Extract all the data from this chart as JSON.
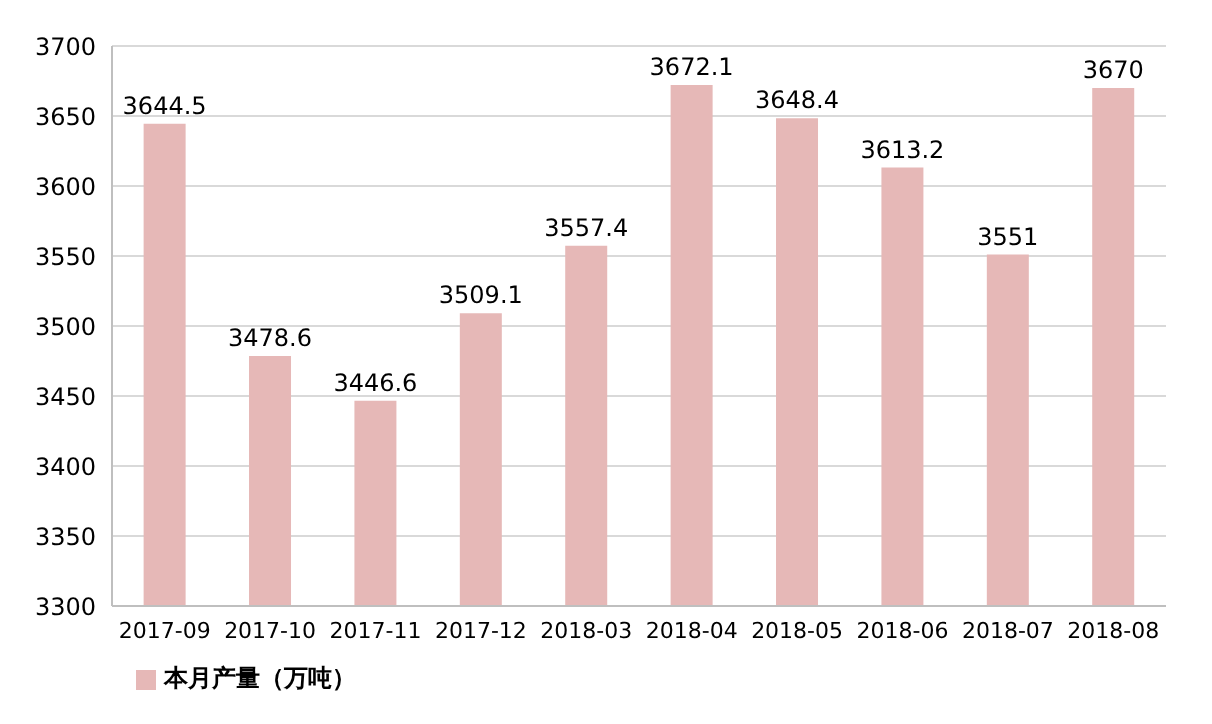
{
  "chart_data": {
    "type": "bar",
    "categories": [
      "2017-09",
      "2017-10",
      "2017-11",
      "2017-12",
      "2018-03",
      "2018-04",
      "2018-05",
      "2018-06",
      "2018-07",
      "2018-08"
    ],
    "series": [
      {
        "name": "本月产量（万吨）",
        "color": "#e6b8b7",
        "values": [
          3644.5,
          3478.6,
          3446.6,
          3509.1,
          3557.4,
          3672.1,
          3648.4,
          3613.2,
          3551,
          3670
        ]
      }
    ],
    "ylim": [
      3300,
      3700
    ],
    "yticks": [
      3300,
      3350,
      3400,
      3450,
      3500,
      3550,
      3600,
      3650,
      3700
    ],
    "grid": "y",
    "legend": "bottom left",
    "data_labels": true
  }
}
